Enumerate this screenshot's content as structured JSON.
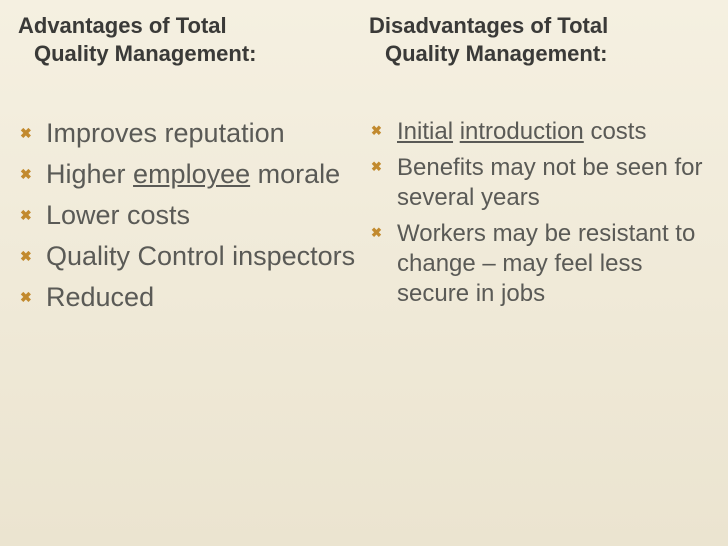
{
  "colors": {
    "background_top": "#f5f0e1",
    "background_bottom": "#ebe4d0",
    "heading_color": "#3a3a38",
    "body_color": "#5a5a56",
    "bullet_color": "#c28a2e",
    "link_color": "#5a5a56"
  },
  "typography": {
    "heading_fontsize": 22,
    "heading_weight": "bold",
    "left_body_fontsize": 27,
    "right_body_fontsize": 24,
    "font_family": "Arial"
  },
  "bullet_glyph": "✖",
  "left": {
    "heading_line1": "Advantages of Total",
    "heading_line2": "Quality Management:",
    "items": [
      {
        "plain": "Improves reputation"
      },
      {
        "pre": "Higher ",
        "link": "employee",
        "post": " morale"
      },
      {
        "plain": "Lower costs"
      },
      {
        "plain": "Quality Control inspectors"
      },
      {
        "plain": "Reduced"
      }
    ]
  },
  "right": {
    "heading_line1": "Disadvantages of Total",
    "heading_line2": "Quality Management:",
    "items": [
      {
        "link1": "Initial",
        "mid": " ",
        "link2": "introduction",
        "post": " costs"
      },
      {
        "plain": "Benefits may not be seen for several years"
      },
      {
        "plain": "Workers may be resistant to change – may feel less secure in jobs"
      }
    ]
  }
}
